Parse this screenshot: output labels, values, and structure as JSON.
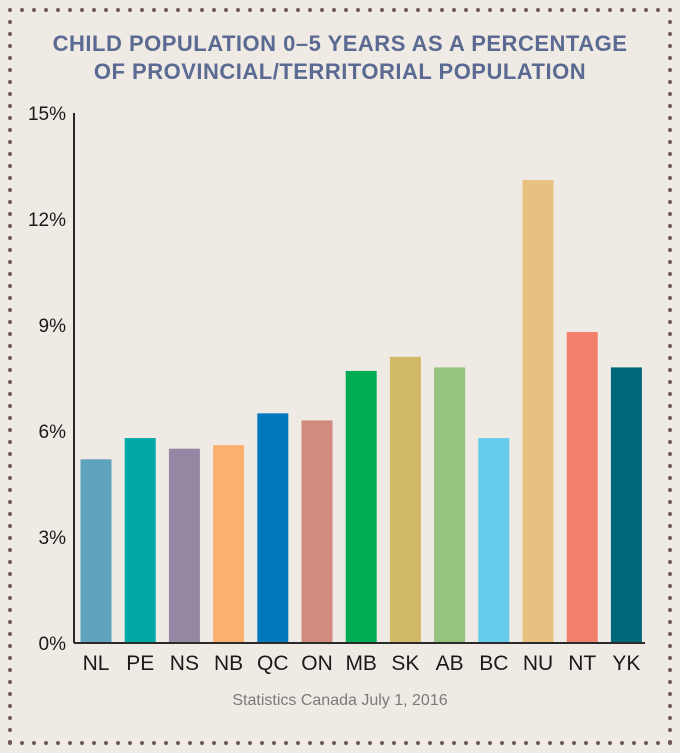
{
  "title_lines": [
    "CHILD POPULATION 0–5 YEARS AS A PERCENTAGE",
    "OF PROVINCIAL/TERRITORIAL POPULATION"
  ],
  "source": "Statistics Canada July 1, 2016",
  "colors": {
    "background": "#efebe4",
    "title": "#5a6a92",
    "axis": "#2a2a2a",
    "dots": "#6e5a52"
  },
  "chart_data": {
    "type": "bar",
    "title": "CHILD POPULATION 0–5 YEARS AS A PERCENTAGE OF PROVINCIAL/TERRITORIAL POPULATION",
    "xlabel": "",
    "ylabel": "",
    "ylim": [
      0,
      15
    ],
    "yticks": [
      0,
      3,
      6,
      9,
      12,
      15
    ],
    "ytick_labels": [
      "0%",
      "3%",
      "6%",
      "9%",
      "12%",
      "15%"
    ],
    "grid": false,
    "categories": [
      "NL",
      "PE",
      "NS",
      "NB",
      "QC",
      "ON",
      "MB",
      "SK",
      "AB",
      "BC",
      "NU",
      "NT",
      "YK"
    ],
    "values": [
      5.2,
      5.8,
      5.5,
      5.6,
      6.5,
      6.3,
      7.7,
      8.1,
      7.8,
      5.8,
      13.1,
      8.8,
      7.8
    ],
    "bar_colors": [
      "#5fa2bb",
      "#00a9a5",
      "#9487a3",
      "#fbb06f",
      "#0078be",
      "#d28b7f",
      "#00ad55",
      "#d2b968",
      "#96c480",
      "#66cbeb",
      "#e8c07f",
      "#f27f6a",
      "#00667a"
    ]
  }
}
